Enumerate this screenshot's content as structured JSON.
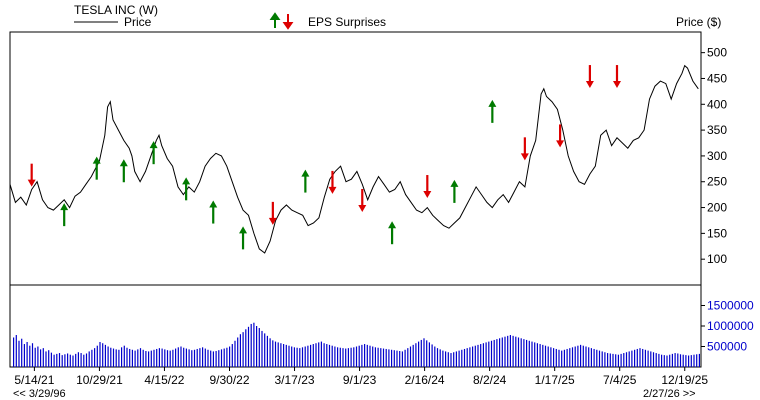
{
  "legend": {
    "title": "TESLA INC (W)",
    "price_label": "Price",
    "eps_label": "EPS Surprises",
    "price_axis_label": "Price ($)"
  },
  "navigation": {
    "start_date": "<< 3/29/96",
    "end_date": "2/27/26 >>"
  },
  "colors": {
    "up": "#007a00",
    "down": "#dd0000",
    "volume": "#0000cc",
    "price_line": "#000000"
  },
  "chart_data": {
    "type": "line",
    "title": "TESLA INC (W)",
    "ylabel": "Price ($)",
    "ylim": [
      50,
      540
    ],
    "x_ticks": [
      "5/14/21",
      "10/29/21",
      "4/15/22",
      "9/30/22",
      "3/17/23",
      "9/1/23",
      "2/16/24",
      "8/2/24",
      "1/17/25",
      "7/4/25",
      "12/19/25"
    ],
    "y_ticks": [
      100,
      150,
      200,
      250,
      300,
      350,
      400,
      450,
      500
    ],
    "volume_ticks": [
      "500000",
      "1000000",
      "1500000"
    ],
    "volume_tick_values": [
      500000,
      1000000,
      1500000
    ],
    "volume_ylim": [
      0,
      2000000
    ],
    "week_range": [
      0,
      255
    ],
    "x_tick_weeks": [
      9,
      33,
      57,
      81,
      105,
      129,
      153,
      177,
      201,
      225,
      249
    ],
    "series": [
      {
        "name": "Price",
        "points": [
          [
            0,
            245
          ],
          [
            2,
            210
          ],
          [
            4,
            220
          ],
          [
            6,
            205
          ],
          [
            8,
            235
          ],
          [
            10,
            250
          ],
          [
            12,
            215
          ],
          [
            14,
            200
          ],
          [
            16,
            195
          ],
          [
            18,
            205
          ],
          [
            20,
            215
          ],
          [
            22,
            200
          ],
          [
            24,
            222
          ],
          [
            26,
            230
          ],
          [
            28,
            245
          ],
          [
            30,
            260
          ],
          [
            31,
            270
          ],
          [
            33,
            290
          ],
          [
            35,
            340
          ],
          [
            36,
            395
          ],
          [
            37,
            405
          ],
          [
            38,
            370
          ],
          [
            40,
            350
          ],
          [
            42,
            330
          ],
          [
            44,
            315
          ],
          [
            45,
            300
          ],
          [
            46,
            270
          ],
          [
            48,
            250
          ],
          [
            50,
            270
          ],
          [
            52,
            300
          ],
          [
            54,
            330
          ],
          [
            55,
            340
          ],
          [
            56,
            320
          ],
          [
            58,
            295
          ],
          [
            60,
            280
          ],
          [
            62,
            240
          ],
          [
            64,
            225
          ],
          [
            66,
            240
          ],
          [
            68,
            230
          ],
          [
            70,
            250
          ],
          [
            72,
            280
          ],
          [
            74,
            295
          ],
          [
            76,
            305
          ],
          [
            78,
            300
          ],
          [
            80,
            280
          ],
          [
            82,
            250
          ],
          [
            84,
            220
          ],
          [
            86,
            195
          ],
          [
            88,
            185
          ],
          [
            90,
            150
          ],
          [
            92,
            120
          ],
          [
            94,
            112
          ],
          [
            96,
            135
          ],
          [
            98,
            175
          ],
          [
            100,
            195
          ],
          [
            102,
            205
          ],
          [
            104,
            195
          ],
          [
            106,
            190
          ],
          [
            108,
            185
          ],
          [
            110,
            165
          ],
          [
            112,
            170
          ],
          [
            114,
            180
          ],
          [
            116,
            220
          ],
          [
            118,
            255
          ],
          [
            120,
            270
          ],
          [
            122,
            280
          ],
          [
            124,
            250
          ],
          [
            126,
            255
          ],
          [
            128,
            270
          ],
          [
            130,
            245
          ],
          [
            132,
            215
          ],
          [
            134,
            240
          ],
          [
            136,
            260
          ],
          [
            138,
            245
          ],
          [
            140,
            230
          ],
          [
            142,
            235
          ],
          [
            144,
            250
          ],
          [
            146,
            225
          ],
          [
            148,
            210
          ],
          [
            150,
            195
          ],
          [
            152,
            190
          ],
          [
            154,
            200
          ],
          [
            156,
            185
          ],
          [
            158,
            175
          ],
          [
            160,
            165
          ],
          [
            162,
            160
          ],
          [
            164,
            170
          ],
          [
            166,
            180
          ],
          [
            168,
            200
          ],
          [
            170,
            220
          ],
          [
            172,
            240
          ],
          [
            174,
            225
          ],
          [
            176,
            210
          ],
          [
            178,
            200
          ],
          [
            180,
            215
          ],
          [
            182,
            225
          ],
          [
            184,
            210
          ],
          [
            186,
            230
          ],
          [
            188,
            250
          ],
          [
            190,
            240
          ],
          [
            192,
            300
          ],
          [
            194,
            330
          ],
          [
            196,
            420
          ],
          [
            197,
            430
          ],
          [
            198,
            415
          ],
          [
            200,
            405
          ],
          [
            202,
            390
          ],
          [
            204,
            350
          ],
          [
            206,
            300
          ],
          [
            208,
            270
          ],
          [
            210,
            250
          ],
          [
            212,
            245
          ],
          [
            214,
            265
          ],
          [
            216,
            280
          ],
          [
            218,
            340
          ],
          [
            220,
            350
          ],
          [
            222,
            320
          ],
          [
            224,
            335
          ],
          [
            226,
            325
          ],
          [
            228,
            315
          ],
          [
            230,
            330
          ],
          [
            232,
            335
          ],
          [
            234,
            350
          ],
          [
            236,
            410
          ],
          [
            238,
            435
          ],
          [
            240,
            445
          ],
          [
            242,
            440
          ],
          [
            244,
            410
          ],
          [
            246,
            440
          ],
          [
            248,
            460
          ],
          [
            249,
            475
          ],
          [
            250,
            470
          ],
          [
            252,
            445
          ],
          [
            254,
            430
          ],
          [
            256,
            420
          ],
          [
            258,
            410
          ],
          [
            260,
            405
          ]
        ]
      }
    ],
    "eps_surprises": [
      {
        "week": 8,
        "price": 254,
        "direction": "down"
      },
      {
        "week": 20,
        "price": 195,
        "direction": "up"
      },
      {
        "week": 32,
        "price": 285,
        "direction": "up"
      },
      {
        "week": 42,
        "price": 280,
        "direction": "up"
      },
      {
        "week": 53,
        "price": 315,
        "direction": "up"
      },
      {
        "week": 65,
        "price": 245,
        "direction": "up"
      },
      {
        "week": 75,
        "price": 200,
        "direction": "up"
      },
      {
        "week": 86,
        "price": 150,
        "direction": "up"
      },
      {
        "week": 97,
        "price": 180,
        "direction": "down"
      },
      {
        "week": 109,
        "price": 260,
        "direction": "up"
      },
      {
        "week": 119,
        "price": 240,
        "direction": "down"
      },
      {
        "week": 130,
        "price": 205,
        "direction": "down"
      },
      {
        "week": 141,
        "price": 160,
        "direction": "up"
      },
      {
        "week": 154,
        "price": 232,
        "direction": "down"
      },
      {
        "week": 164,
        "price": 240,
        "direction": "up"
      },
      {
        "week": 178,
        "price": 395,
        "direction": "up"
      },
      {
        "week": 190,
        "price": 305,
        "direction": "down"
      },
      {
        "week": 203,
        "price": 330,
        "direction": "down"
      },
      {
        "week": 214,
        "price": 445,
        "direction": "down"
      },
      {
        "week": 224,
        "price": 445,
        "direction": "down"
      }
    ],
    "volume": [
      720000,
      780000,
      640000,
      690000,
      560000,
      610000,
      520000,
      580000,
      470000,
      500000,
      430000,
      460000,
      380000,
      410000,
      350000,
      300000,
      320000,
      340000,
      290000,
      310000,
      330000,
      300000,
      280000,
      320000,
      360000,
      340000,
      300000,
      330000,
      380000,
      420000,
      460000,
      520000,
      610000,
      580000,
      540000,
      500000,
      470000,
      450000,
      430000,
      420000,
      480000,
      520000,
      470000,
      440000,
      420000,
      400000,
      430000,
      460000,
      420000,
      390000,
      380000,
      400000,
      420000,
      440000,
      460000,
      450000,
      430000,
      410000,
      400000,
      420000,
      450000,
      480000,
      500000,
      470000,
      450000,
      430000,
      410000,
      420000,
      440000,
      460000,
      480000,
      450000,
      420000,
      400000,
      380000,
      390000,
      410000,
      430000,
      450000,
      470000,
      500000,
      560000,
      640000,
      720000,
      800000,
      850000,
      920000,
      980000,
      1050000,
      1080000,
      1000000,
      950000,
      880000,
      820000,
      760000,
      700000,
      650000,
      620000,
      600000,
      580000,
      560000,
      540000,
      520000,
      500000,
      480000,
      470000,
      460000,
      480000,
      500000,
      520000,
      540000,
      560000,
      580000,
      600000,
      620000,
      580000,
      560000,
      540000,
      520000,
      500000,
      480000,
      470000,
      460000,
      450000,
      460000,
      470000,
      480000,
      500000,
      520000,
      540000,
      560000,
      540000,
      520000,
      500000,
      480000,
      470000,
      460000,
      450000,
      440000,
      430000,
      420000,
      410000,
      400000,
      390000,
      380000,
      420000,
      460000,
      500000,
      540000,
      580000,
      620000,
      660000,
      700000,
      650000,
      600000,
      550000,
      500000,
      460000,
      430000,
      400000,
      380000,
      360000,
      340000,
      360000,
      380000,
      400000,
      420000,
      440000,
      460000,
      480000,
      500000,
      520000,
      540000,
      560000,
      580000,
      600000,
      620000,
      640000,
      660000,
      680000,
      700000,
      720000,
      740000,
      760000,
      780000,
      760000,
      740000,
      720000,
      700000,
      680000,
      660000,
      640000,
      620000,
      600000,
      580000,
      560000,
      540000,
      520000,
      500000,
      480000,
      460000,
      440000,
      420000,
      400000,
      420000,
      440000,
      460000,
      480000,
      500000,
      520000,
      540000,
      520000,
      500000,
      480000,
      460000,
      440000,
      420000,
      400000,
      380000,
      360000,
      340000,
      330000,
      320000,
      310000,
      300000,
      320000,
      340000,
      360000,
      380000,
      400000,
      420000,
      440000,
      460000,
      440000,
      420000,
      400000,
      380000,
      360000,
      340000,
      320000,
      300000,
      290000,
      280000,
      300000,
      320000,
      340000,
      330000,
      310000,
      300000,
      290000,
      280000,
      290000,
      300000,
      310000,
      320000,
      310000
    ]
  }
}
